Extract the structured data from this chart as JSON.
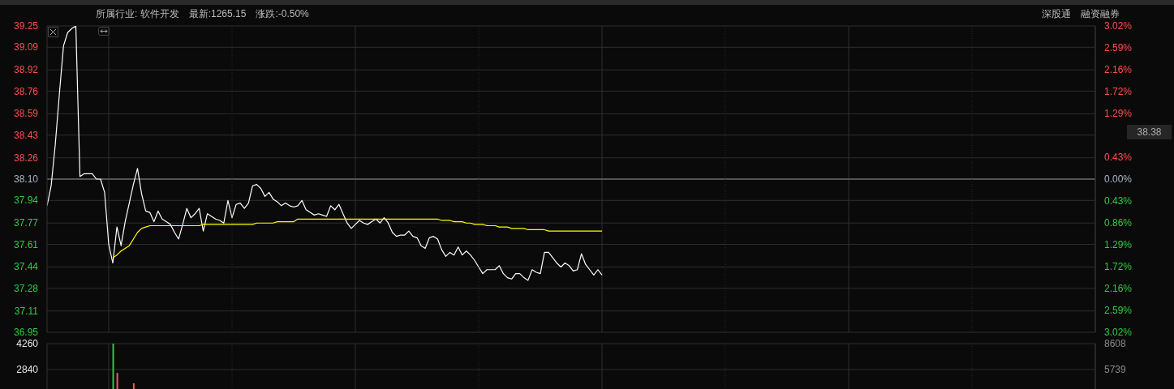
{
  "chart_data": [
    {
      "type": "line",
      "annotations": [
        "所属行业: 软件开发",
        "最新:1265.15",
        "涨跌:-0.50%",
        "深股通",
        "融资融券",
        "38.38"
      ],
      "categories": [
        null,
        null,
        null,
        null,
        null,
        null,
        null,
        null,
        null,
        null,
        null,
        null,
        null,
        null,
        null,
        null,
        null,
        null,
        null,
        null,
        null,
        null,
        null,
        null,
        null,
        null,
        null,
        null,
        null,
        null,
        null,
        null,
        null,
        null,
        null,
        null,
        null,
        null,
        null,
        null,
        null,
        null,
        null,
        null,
        null,
        null,
        null,
        null,
        null,
        null,
        null,
        null,
        null,
        null,
        null,
        null,
        null,
        null,
        null,
        null,
        null,
        null,
        null,
        null,
        null,
        null,
        null,
        null,
        null,
        null,
        null,
        null,
        null,
        null,
        null,
        null,
        null,
        null,
        null,
        null,
        null,
        null,
        null,
        null,
        null,
        null,
        null,
        null,
        null,
        null,
        null,
        null,
        null,
        null,
        null,
        null,
        null,
        null,
        null,
        null,
        null,
        null,
        null,
        null,
        null,
        null,
        null,
        null,
        null,
        null,
        null,
        null,
        null,
        null,
        null,
        null,
        null,
        null,
        null,
        null,
        null,
        null,
        null,
        null,
        null,
        null,
        null,
        null,
        null,
        null,
        null,
        null,
        null,
        null,
        null,
        null,
        null,
        null,
        null,
        null,
        null,
        null,
        null,
        null,
        null,
        null,
        null,
        null,
        null,
        null,
        null,
        null,
        null,
        null,
        null,
        null,
        null,
        null,
        null,
        null,
        null,
        null,
        null,
        null,
        null,
        null,
        null,
        null,
        null,
        null,
        null,
        null,
        null,
        null,
        null,
        null,
        null,
        null,
        null,
        null,
        null,
        null,
        null,
        null,
        null,
        null,
        null,
        null,
        null,
        null,
        null,
        null,
        null,
        null,
        null,
        null,
        null,
        null,
        null,
        null,
        null,
        null,
        null,
        null,
        null,
        null,
        null,
        null,
        null,
        null,
        null,
        null,
        null,
        null,
        null,
        null,
        null,
        null,
        null,
        null,
        null,
        null,
        null,
        null,
        null,
        null,
        null,
        null,
        null,
        null,
        null,
        null,
        null,
        null,
        null,
        null,
        null,
        null,
        null,
        null,
        null,
        null,
        null,
        null,
        null,
        null,
        null,
        null,
        null,
        null,
        null,
        null,
        null,
        null,
        null,
        null
      ],
      "series": [
        {
          "color": "#ffffff",
          "values": [
            37.9,
            38.05,
            38.36,
            38.74,
            39.1,
            39.2,
            39.23,
            39.25,
            38.12,
            38.14,
            38.14,
            38.14,
            38.1,
            38.1,
            38.0,
            37.61,
            37.47,
            37.74,
            37.6,
            37.78,
            37.92,
            38.06,
            38.18,
            37.99,
            37.86,
            37.85,
            37.78,
            37.86,
            37.8,
            37.78,
            37.76,
            37.7,
            37.65,
            37.76,
            37.88,
            37.81,
            37.84,
            37.88,
            37.71,
            37.84,
            37.82,
            37.8,
            37.79,
            37.77,
            37.94,
            37.81,
            37.91,
            37.92,
            37.88,
            37.92,
            38.05,
            38.06,
            38.03,
            37.97,
            38.0,
            37.95,
            37.93,
            37.9,
            37.92,
            37.9,
            37.89,
            37.9,
            37.94,
            37.87,
            37.85,
            37.83,
            37.84,
            37.83,
            37.82,
            37.9,
            37.87,
            37.91,
            37.84,
            37.77,
            37.73,
            37.76,
            37.79,
            37.77,
            37.76,
            37.78,
            37.8,
            37.77,
            37.81,
            37.77,
            37.7,
            37.67,
            37.68,
            37.68,
            37.71,
            37.67,
            37.66,
            37.6,
            37.58,
            37.66,
            37.67,
            37.65,
            37.57,
            37.52,
            37.55,
            37.53,
            37.59,
            37.53,
            37.56,
            37.53,
            37.49,
            37.44,
            37.39,
            37.42,
            37.42,
            37.42,
            37.45,
            37.39,
            37.36,
            37.35,
            37.39,
            37.39,
            37.36,
            37.34,
            37.42,
            37.4,
            37.39,
            37.55,
            37.55,
            37.51,
            37.47,
            37.44,
            37.47,
            37.45,
            37.41,
            37.42,
            37.54,
            37.46,
            37.42,
            37.38,
            37.42,
            37.38,
            null,
            null,
            null,
            null,
            null,
            null,
            null,
            null,
            null,
            null,
            null,
            null,
            null,
            null,
            null,
            null,
            null,
            null,
            null,
            null,
            null,
            null,
            null,
            null,
            null,
            null,
            null,
            null,
            null,
            null,
            null,
            null,
            null,
            null,
            null,
            null,
            null,
            null,
            null,
            null,
            null,
            null,
            null,
            null,
            null,
            null,
            null,
            null,
            null,
            null,
            null,
            null,
            null,
            null,
            null,
            null,
            null,
            null,
            null,
            null,
            null,
            null,
            null,
            null,
            null,
            null,
            null,
            null,
            null,
            null,
            null,
            null,
            null,
            null,
            null,
            null,
            null,
            null,
            null,
            null,
            null,
            null,
            null,
            null,
            null,
            null,
            null,
            null,
            null,
            null,
            null,
            null,
            null,
            null,
            null,
            null,
            null,
            null,
            null,
            null,
            null,
            null,
            null,
            null,
            null,
            null,
            null,
            null,
            null,
            null,
            null,
            null,
            null,
            null,
            null,
            null,
            null,
            null,
            null,
            null
          ]
        },
        {
          "color": "#ffff00",
          "values": [
            null,
            null,
            null,
            null,
            null,
            null,
            null,
            null,
            null,
            null,
            null,
            null,
            null,
            null,
            null,
            null,
            37.51,
            37.53,
            37.56,
            37.58,
            37.6,
            37.65,
            37.7,
            37.73,
            37.74,
            37.75,
            37.75,
            37.75,
            37.75,
            37.75,
            37.75,
            37.75,
            37.75,
            37.75,
            37.75,
            37.75,
            37.75,
            37.75,
            37.76,
            37.76,
            37.76,
            37.76,
            37.76,
            37.76,
            37.76,
            37.76,
            37.76,
            37.76,
            37.76,
            37.76,
            37.76,
            37.77,
            37.77,
            37.77,
            37.77,
            37.77,
            37.78,
            37.78,
            37.78,
            37.78,
            37.78,
            37.8,
            37.8,
            37.8,
            37.8,
            37.8,
            37.8,
            37.8,
            37.8,
            37.8,
            37.8,
            37.8,
            37.8,
            37.8,
            37.8,
            37.8,
            37.8,
            37.8,
            37.8,
            37.8,
            37.8,
            37.8,
            37.8,
            37.8,
            37.8,
            37.8,
            37.8,
            37.8,
            37.8,
            37.8,
            37.8,
            37.8,
            37.8,
            37.8,
            37.8,
            37.8,
            37.79,
            37.79,
            37.79,
            37.78,
            37.78,
            37.78,
            37.77,
            37.77,
            37.76,
            37.76,
            37.76,
            37.75,
            37.75,
            37.75,
            37.74,
            37.74,
            37.74,
            37.73,
            37.73,
            37.73,
            37.73,
            37.72,
            37.72,
            37.72,
            37.72,
            37.72,
            37.71,
            37.71,
            37.71,
            37.71,
            37.71,
            37.71,
            37.71,
            37.71,
            37.71,
            37.71,
            37.71,
            37.71,
            37.71,
            37.71,
            null,
            null,
            null,
            null,
            null,
            null,
            null,
            null,
            null,
            null,
            null,
            null,
            null,
            null,
            null,
            null,
            null,
            null,
            null,
            null,
            null,
            null,
            null,
            null,
            null,
            null,
            null,
            null,
            null,
            null,
            null,
            null,
            null,
            null,
            null,
            null,
            null,
            null,
            null,
            null,
            null,
            null,
            null,
            null,
            null,
            null,
            null,
            null,
            null,
            null,
            null,
            null,
            null,
            null,
            null,
            null,
            null,
            null,
            null,
            null,
            null,
            null,
            null,
            null,
            null,
            null,
            null,
            null,
            null,
            null,
            null,
            null,
            null,
            null,
            null,
            null,
            null,
            null,
            null,
            null,
            null,
            null,
            null,
            null,
            null,
            null,
            null,
            null,
            null,
            null,
            null,
            null,
            null,
            null,
            null,
            null,
            null,
            null,
            null,
            null,
            null,
            null,
            null,
            null,
            null,
            null,
            null,
            null,
            null,
            null,
            null,
            null,
            null,
            null,
            null,
            null,
            null,
            null,
            null,
            null
          ]
        }
      ],
      "ylim": [
        36.95,
        39.25
      ],
      "yticks": [
        39.25,
        39.09,
        38.92,
        38.76,
        38.59,
        38.43,
        38.26,
        {
          "value": 38.1,
          "label": "38.10"
        },
        37.94,
        37.77,
        37.61,
        37.44,
        37.28,
        37.11,
        36.95
      ],
      "y2lim": [
        -3.02,
        3.02
      ],
      "y2ticks": [
        {
          "value": 3.02,
          "label": "3.02%"
        },
        {
          "value": 2.59,
          "label": "2.59%"
        },
        {
          "value": 2.16,
          "label": "2.16%"
        },
        {
          "value": 1.72,
          "label": "1.72%"
        },
        {
          "value": 1.29,
          "label": "1.29%"
        },
        {
          "value": 0.43,
          "label": "0.43%"
        },
        {
          "value": 0,
          "label": "0.00%"
        },
        {
          "value": -0.43,
          "label": "0.43%"
        },
        {
          "value": -0.86,
          "label": "0.86%"
        },
        {
          "value": -1.29,
          "label": "1.29%"
        },
        {
          "value": -1.72,
          "label": "1.72%"
        },
        {
          "value": -2.16,
          "label": "2.16%"
        },
        {
          "value": -2.59,
          "label": "2.59%"
        },
        {
          "value": -3.02,
          "label": "3.02%"
        }
      ],
      "ref_lines": [
        {
          "axis": "y",
          "value": 38.1,
          "color": "#555555"
        }
      ],
      "grid": true,
      "marker": "none",
      "line_style": "solid"
    },
    {
      "type": "bar",
      "categories": [
        null,
        null,
        null,
        null,
        null,
        null,
        null,
        null,
        null,
        null,
        null,
        null,
        null,
        null,
        null,
        null,
        null,
        null,
        null,
        null,
        null,
        null,
        null,
        null,
        null,
        null,
        null,
        null,
        null,
        null,
        null,
        null,
        null,
        null,
        null,
        null,
        null,
        null,
        null,
        null,
        null,
        null,
        null,
        null,
        null,
        null,
        null,
        null,
        null,
        null,
        null,
        null,
        null,
        null,
        null,
        null,
        null,
        null,
        null,
        null,
        null,
        null,
        null,
        null,
        null,
        null,
        null,
        null,
        null,
        null,
        null,
        null,
        null,
        null,
        null,
        null,
        null,
        null,
        null,
        null,
        null,
        null,
        null,
        null,
        null,
        null,
        null,
        null,
        null,
        null,
        null,
        null,
        null,
        null,
        null,
        null,
        null,
        null,
        null,
        null,
        null,
        null,
        null,
        null,
        null,
        null,
        null,
        null,
        null,
        null,
        null,
        null,
        null,
        null,
        null,
        null,
        null,
        null,
        null,
        null,
        null,
        null,
        null,
        null,
        null,
        null,
        null,
        null,
        null,
        null,
        null,
        null,
        null,
        null,
        null,
        null,
        null,
        null,
        null,
        null,
        null,
        null,
        null,
        null,
        null,
        null,
        null,
        null,
        null,
        null,
        null,
        null,
        null,
        null,
        null,
        null,
        null,
        null,
        null,
        null,
        null,
        null,
        null,
        null,
        null,
        null,
        null,
        null,
        null,
        null,
        null,
        null,
        null,
        null,
        null,
        null,
        null,
        null,
        null,
        null,
        null,
        null,
        null,
        null,
        null,
        null,
        null,
        null,
        null,
        null,
        null,
        null,
        null,
        null,
        null,
        null,
        null,
        null,
        null,
        null,
        null,
        null,
        null,
        null,
        null,
        null,
        null,
        null,
        null,
        null,
        null,
        null,
        null,
        null,
        null,
        null,
        null,
        null,
        null,
        null,
        null,
        null,
        null,
        null,
        null,
        null,
        null,
        null,
        null,
        null,
        null,
        null,
        null,
        null,
        null,
        null,
        null,
        null,
        null,
        null,
        null,
        null,
        null,
        null,
        null,
        null,
        null,
        null,
        null,
        null,
        null,
        null,
        null,
        null,
        null,
        null
      ],
      "values": [
        null,
        null,
        null,
        null,
        null,
        null,
        null,
        null,
        null,
        null,
        null,
        null,
        null,
        null,
        null,
        null,
        4260,
        2660,
        null,
        null,
        null,
        2090,
        null,
        null,
        null,
        null,
        null,
        null,
        null,
        null,
        null,
        null,
        null,
        null,
        null,
        null,
        null,
        null,
        null,
        null,
        null,
        null,
        null,
        null,
        null,
        null,
        null,
        null,
        null,
        null,
        null,
        null,
        null,
        null,
        null,
        null,
        null,
        null,
        null,
        null,
        null,
        null,
        null,
        null,
        null,
        null,
        null,
        null,
        null,
        null,
        null,
        null,
        null,
        null,
        null,
        null,
        null,
        null,
        null,
        null,
        null,
        null,
        null,
        null,
        null,
        null,
        null,
        null,
        null,
        null,
        null,
        null,
        null,
        null,
        null,
        null,
        null,
        null,
        null,
        null,
        null,
        null,
        null,
        null,
        null,
        null,
        null,
        null,
        null,
        null,
        null,
        null,
        null,
        null,
        null,
        null,
        null,
        null,
        null,
        null,
        null,
        null,
        null,
        null,
        null,
        null,
        null,
        null,
        null,
        null,
        null,
        null,
        null,
        null,
        null,
        null,
        null,
        null,
        null,
        null,
        null,
        null,
        null,
        null,
        null,
        null,
        null,
        null,
        null,
        null,
        null,
        null,
        null,
        null,
        null,
        null,
        null,
        null,
        null,
        null,
        null,
        null,
        null,
        null,
        null,
        null,
        null,
        null,
        null,
        null,
        null,
        null,
        null,
        null,
        null,
        null,
        null,
        null,
        null,
        null,
        null,
        null,
        null,
        null,
        null,
        null,
        null,
        null,
        null,
        null,
        null,
        null,
        null,
        null,
        null,
        null,
        null,
        null,
        null,
        null,
        null,
        null,
        null,
        null,
        null,
        null,
        null,
        null,
        null,
        null,
        null,
        null,
        null,
        null,
        null,
        null,
        null,
        null,
        null,
        null,
        null,
        null,
        null,
        null,
        null,
        null,
        null,
        null,
        null,
        null,
        null,
        null,
        null,
        null,
        null,
        null,
        null,
        null,
        null,
        null,
        null,
        null,
        null,
        null,
        null,
        null,
        null,
        null,
        null,
        null,
        null,
        null,
        null,
        null,
        null,
        null
      ],
      "colors": [
        null,
        null,
        null,
        null,
        null,
        null,
        null,
        null,
        null,
        null,
        null,
        null,
        null,
        null,
        null,
        null,
        "#2ecc40",
        "#ff5555",
        null,
        null,
        null,
        "#ff5555",
        null,
        null,
        null,
        null,
        null,
        null,
        null,
        null,
        null,
        null,
        null,
        null,
        null,
        null,
        null,
        null,
        null,
        null,
        null,
        null,
        null,
        null,
        null,
        null,
        null,
        null,
        null,
        null,
        null,
        null,
        null,
        null,
        null,
        null,
        null,
        null,
        null,
        null,
        null,
        null,
        null,
        null,
        null,
        null,
        null,
        null,
        null,
        null,
        null,
        null,
        null,
        null,
        null,
        null,
        null,
        null,
        null,
        null,
        null,
        null,
        null,
        null,
        null,
        null,
        null,
        null,
        null,
        null,
        null,
        null,
        null,
        null,
        null,
        null,
        null,
        null,
        null,
        null,
        null,
        null,
        null,
        null,
        null,
        null,
        null,
        null,
        null,
        null,
        null,
        null,
        null,
        null,
        null,
        null,
        null,
        null,
        null,
        null,
        null,
        null,
        null,
        null,
        null,
        null,
        null,
        null,
        null,
        null,
        null,
        null,
        null,
        null,
        null,
        null,
        null,
        null,
        null,
        null,
        null,
        null,
        null,
        null,
        null,
        null,
        null,
        null,
        null,
        null,
        null,
        null,
        null,
        null,
        null,
        null,
        null,
        null,
        null,
        null,
        null,
        null,
        null,
        null,
        null,
        null,
        null,
        null,
        null,
        null,
        null,
        null,
        null,
        null,
        null,
        null,
        null,
        null,
        null,
        null,
        null,
        null,
        null,
        null,
        null,
        null,
        null,
        null,
        null,
        null,
        null,
        null,
        null,
        null,
        null,
        null,
        null,
        null,
        null,
        null,
        null,
        null,
        null,
        null,
        null,
        null,
        null,
        null,
        null,
        null,
        null,
        null,
        null,
        null,
        null,
        null,
        null,
        null,
        null,
        null,
        null,
        null,
        null,
        null,
        null,
        null,
        null,
        null,
        null,
        null,
        null,
        null,
        null,
        null,
        null,
        null,
        null,
        null,
        null,
        null,
        null,
        null,
        null,
        null,
        null,
        null,
        null,
        null,
        null,
        null,
        null,
        null,
        null,
        null,
        null,
        null
      ],
      "ylim": [
        1775,
        4260
      ],
      "yticks": [
        4260,
        2840
      ],
      "y2lim": [
        3587,
        8608
      ],
      "y2ticks": [
        8608,
        5739
      ],
      "grid": true
    }
  ]
}
